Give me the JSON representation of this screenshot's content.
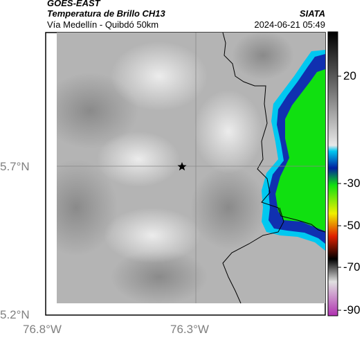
{
  "header": {
    "satellite": "GOES-EAST",
    "product": "Temperatura de Brillo CH13",
    "region": "Vía Medellín - Quibdó 50km",
    "org": "SIATA",
    "timestamp": "2024-06-21 05:49"
  },
  "map": {
    "lat_labels": [
      "5.7°N",
      "5.2°N"
    ],
    "lon_labels": [
      "76.8°W",
      "76.3°W"
    ],
    "marker": "star",
    "gridlines": true
  },
  "colorbar": {
    "ticks": [
      "20",
      "-30",
      "-50",
      "-70",
      "-90"
    ],
    "colors": {
      "warm_top": "#000000",
      "gray_mid": "#9a9a9a",
      "cyan": "#00b8e0",
      "blue": "#1030b0",
      "green": "#10e010",
      "yellow": "#f0f000",
      "red": "#e02000",
      "black": "#000000",
      "magenta": "#c040c0"
    }
  }
}
